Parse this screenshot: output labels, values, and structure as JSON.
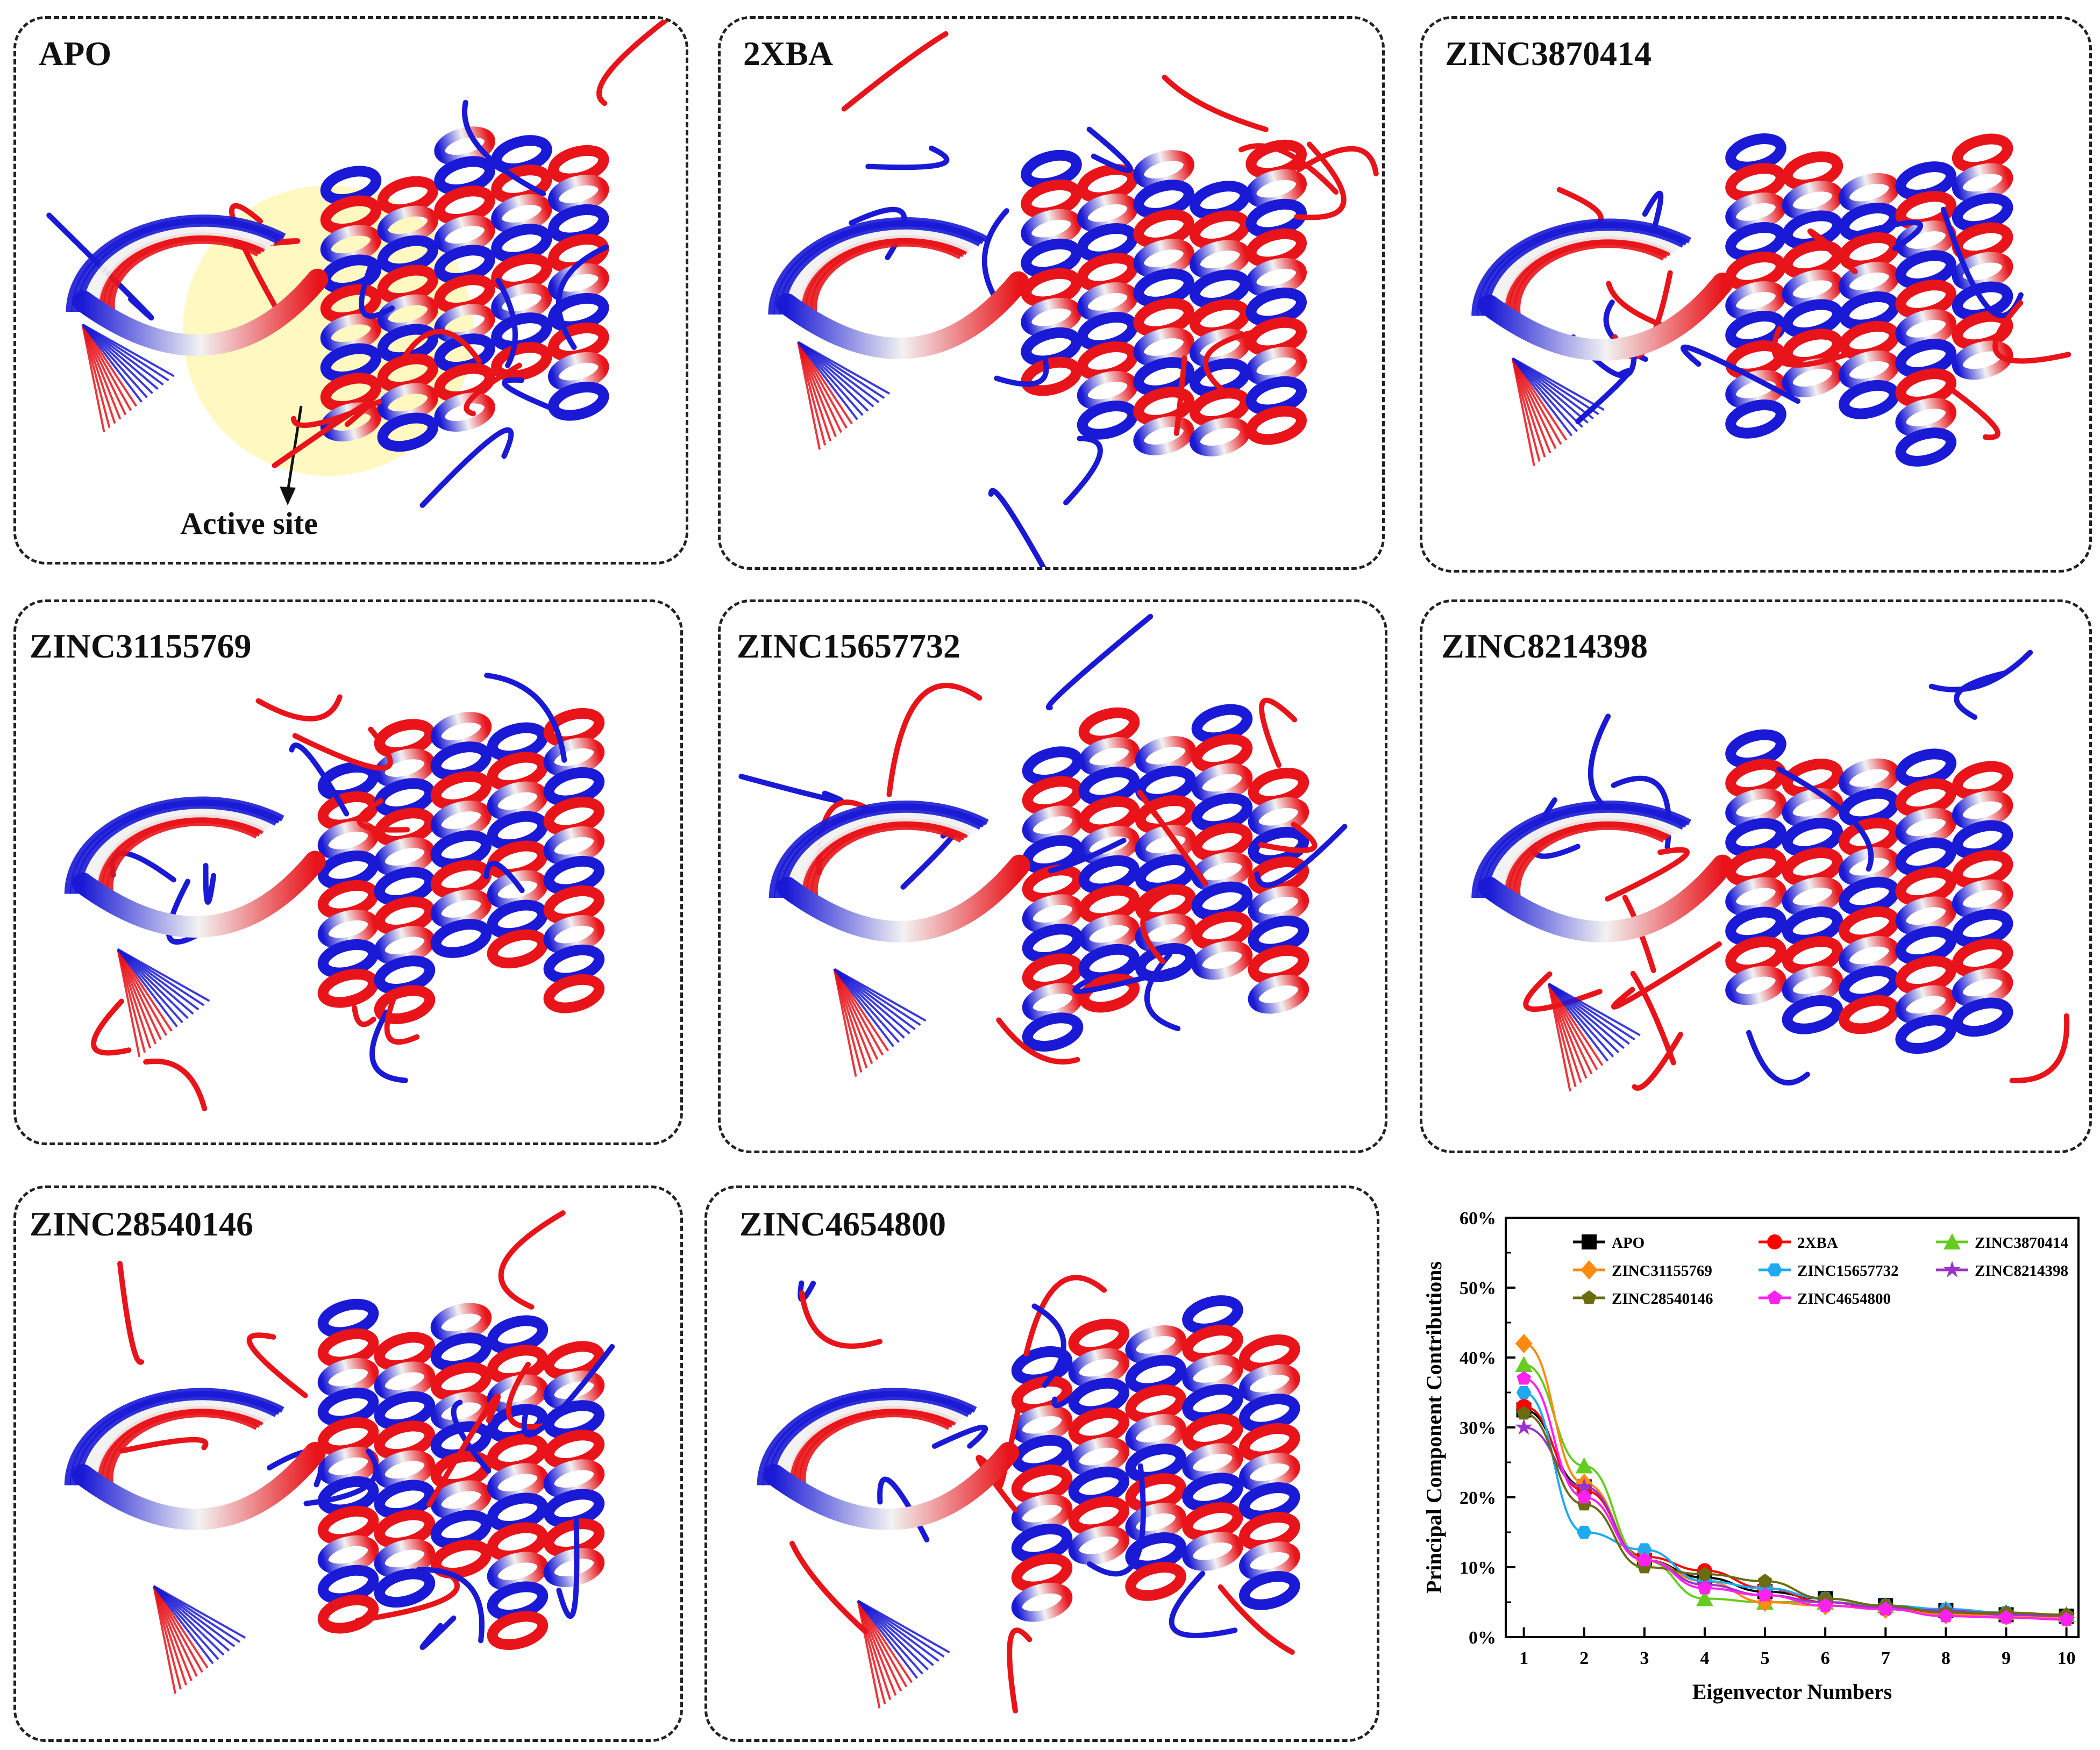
{
  "panels": [
    {
      "id": "apo",
      "label": "APO"
    },
    {
      "id": "2xba",
      "label": "2XBA"
    },
    {
      "id": "zinc3870414",
      "label": "ZINC3870414"
    },
    {
      "id": "zinc31155769",
      "label": "ZINC31155769"
    },
    {
      "id": "zinc15657732",
      "label": "ZINC15657732"
    },
    {
      "id": "zinc8214398",
      "label": "ZINC8214398"
    },
    {
      "id": "zinc28540146",
      "label": "ZINC28540146"
    },
    {
      "id": "zinc4654800",
      "label": "ZINC4654800"
    }
  ],
  "annotation": {
    "active_site": "Active site"
  },
  "colors": {
    "red": "#e8141a",
    "blue": "#1a1ad6",
    "white": "#f2f2f2",
    "highlight": "#fff6b0"
  },
  "chart_data": {
    "type": "line",
    "xlabel": "Eigenvector Numbers",
    "ylabel": "Principal Component Contributions",
    "x": [
      1,
      2,
      3,
      4,
      5,
      6,
      7,
      8,
      9,
      10
    ],
    "xlim": [
      0.7,
      10.2
    ],
    "ylim": [
      0,
      60
    ],
    "yticks": [
      "0%",
      "10%",
      "20%",
      "30%",
      "40%",
      "50%",
      "60%"
    ],
    "legend_position": "top",
    "series": [
      {
        "name": "APO",
        "color": "#000000",
        "marker": "square",
        "values": [
          32.5,
          21.5,
          11.0,
          8.5,
          6.5,
          5.5,
          4.5,
          3.8,
          3.2,
          3.0
        ]
      },
      {
        "name": "2XBA",
        "color": "#ff0000",
        "marker": "circle",
        "values": [
          33.0,
          21.0,
          11.5,
          9.5,
          7.0,
          5.0,
          4.0,
          3.5,
          3.0,
          2.8
        ]
      },
      {
        "name": "ZINC3870414",
        "color": "#66cc22",
        "marker": "triangle",
        "values": [
          39.0,
          24.5,
          11.0,
          5.5,
          5.0,
          5.0,
          4.5,
          4.0,
          3.5,
          3.2
        ]
      },
      {
        "name": "ZINC31155769",
        "color": "#ff8a10",
        "marker": "diamond",
        "values": [
          42.0,
          22.0,
          11.0,
          8.0,
          5.0,
          4.5,
          4.0,
          3.2,
          3.0,
          2.8
        ]
      },
      {
        "name": "ZINC15657732",
        "color": "#1eaaf0",
        "marker": "hexagon",
        "values": [
          35.0,
          15.0,
          12.5,
          8.0,
          7.0,
          5.5,
          4.5,
          4.0,
          3.5,
          3.0
        ]
      },
      {
        "name": "ZINC8214398",
        "color": "#9933cc",
        "marker": "star",
        "values": [
          30.0,
          21.5,
          11.0,
          7.5,
          6.0,
          5.0,
          4.2,
          3.8,
          3.2,
          3.0
        ]
      },
      {
        "name": "ZINC28540146",
        "color": "#6b6b10",
        "marker": "pentagon",
        "values": [
          32.0,
          19.0,
          10.0,
          9.0,
          8.0,
          5.5,
          4.5,
          3.5,
          3.5,
          3.2
        ]
      },
      {
        "name": "ZINC4654800",
        "color": "#ff22ee",
        "marker": "pentagon",
        "values": [
          37.0,
          20.0,
          11.0,
          7.0,
          6.0,
          4.5,
          4.0,
          3.0,
          2.8,
          2.5
        ]
      }
    ]
  }
}
